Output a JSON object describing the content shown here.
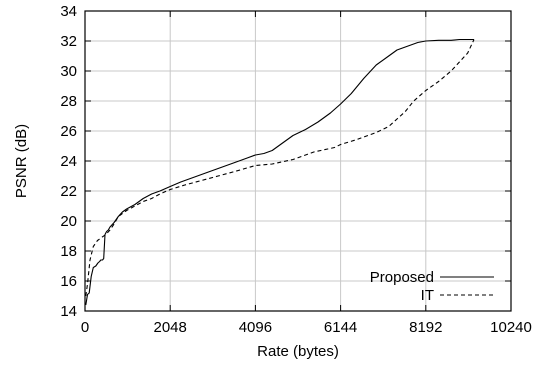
{
  "chart_data": {
    "type": "line",
    "title": "",
    "xlabel": "Rate (bytes)",
    "ylabel": "PSNR (dB)",
    "xlim": [
      0,
      10240
    ],
    "ylim": [
      14,
      34
    ],
    "xticks": [
      0,
      2048,
      4096,
      6144,
      8192,
      10240
    ],
    "yticks": [
      14,
      16,
      18,
      20,
      22,
      24,
      26,
      28,
      30,
      32,
      34
    ],
    "grid": true,
    "legend": "bottom-right",
    "series": [
      {
        "name": "Proposed",
        "style": "solid",
        "color": "#000000",
        "x": [
          20,
          60,
          100,
          150,
          200,
          260,
          310,
          350,
          380,
          420,
          450,
          480,
          500,
          520,
          560,
          600,
          700,
          800,
          900,
          1000,
          1200,
          1400,
          1600,
          1800,
          2048,
          2300,
          2600,
          2800,
          3000,
          3300,
          3600,
          3900,
          4096,
          4300,
          4500,
          4700,
          5000,
          5300,
          5600,
          5900,
          6144,
          6400,
          6700,
          7000,
          7300,
          7500,
          7700,
          8000,
          8192,
          8500,
          8800,
          9000,
          9200,
          9350
        ],
        "y": [
          14.4,
          15.1,
          15.2,
          16.3,
          16.9,
          17.0,
          17.2,
          17.3,
          17.4,
          17.4,
          17.5,
          19.1,
          19.2,
          19.3,
          19.4,
          19.6,
          19.9,
          20.3,
          20.6,
          20.8,
          21.1,
          21.5,
          21.8,
          22.0,
          22.3,
          22.6,
          22.9,
          23.1,
          23.3,
          23.6,
          23.9,
          24.2,
          24.4,
          24.5,
          24.7,
          25.1,
          25.7,
          26.1,
          26.6,
          27.2,
          27.8,
          28.5,
          29.5,
          30.4,
          31.0,
          31.4,
          31.6,
          31.9,
          32.0,
          32.05,
          32.05,
          32.1,
          32.1,
          32.1
        ]
      },
      {
        "name": "IT",
        "style": "dashed",
        "color": "#000000",
        "x": [
          20,
          60,
          120,
          200,
          300,
          400,
          500,
          600,
          700,
          800,
          900,
          1000,
          1200,
          1400,
          1600,
          1800,
          2048,
          2400,
          2800,
          3200,
          3600,
          4096,
          4500,
          5000,
          5500,
          6000,
          6144,
          6500,
          7000,
          7300,
          7500,
          7700,
          7900,
          8192,
          8500,
          8800,
          9000,
          9200,
          9350
        ],
        "y": [
          15.0,
          15.8,
          17.4,
          18.3,
          18.7,
          18.9,
          19.1,
          19.4,
          19.8,
          20.3,
          20.5,
          20.7,
          21.0,
          21.3,
          21.5,
          21.8,
          22.1,
          22.4,
          22.7,
          23.0,
          23.3,
          23.7,
          23.8,
          24.1,
          24.6,
          24.9,
          25.1,
          25.4,
          25.9,
          26.3,
          26.8,
          27.3,
          28.0,
          28.7,
          29.3,
          30.0,
          30.6,
          31.2,
          32.1
        ]
      }
    ]
  }
}
